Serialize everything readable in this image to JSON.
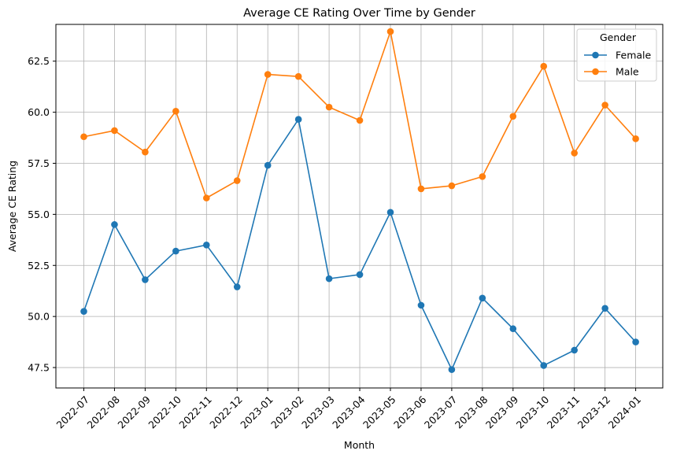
{
  "chart_data": {
    "type": "line",
    "title": "Average CE Rating Over Time by Gender",
    "xlabel": "Month",
    "ylabel": "Average CE Rating",
    "categories": [
      "2022-07",
      "2022-08",
      "2022-09",
      "2022-10",
      "2022-11",
      "2022-12",
      "2023-01",
      "2023-02",
      "2023-03",
      "2023-04",
      "2023-05",
      "2023-06",
      "2023-07",
      "2023-08",
      "2023-09",
      "2023-10",
      "2023-11",
      "2023-12",
      "2024-01"
    ],
    "series": [
      {
        "name": "Female",
        "color": "#1f77b4",
        "values": [
          50.25,
          54.5,
          51.8,
          53.2,
          53.5,
          51.45,
          57.4,
          59.65,
          51.85,
          52.05,
          55.1,
          50.55,
          47.4,
          50.9,
          49.4,
          47.6,
          48.35,
          50.4,
          48.75
        ]
      },
      {
        "name": "Male",
        "color": "#ff7f0e",
        "values": [
          58.8,
          59.1,
          58.05,
          60.05,
          55.8,
          56.65,
          61.85,
          61.75,
          60.25,
          59.6,
          63.95,
          56.25,
          56.4,
          56.85,
          59.8,
          62.25,
          58.0,
          60.35,
          58.7
        ]
      }
    ],
    "ylim": [
      46.5,
      64.3
    ],
    "yticks": [
      47.5,
      50.0,
      52.5,
      55.0,
      57.5,
      60.0,
      62.5
    ],
    "ytick_labels": [
      "47.5",
      "50.0",
      "52.5",
      "55.0",
      "57.5",
      "60.0",
      "62.5"
    ],
    "grid": true,
    "legend": {
      "title": "Gender",
      "position": "top-right"
    }
  }
}
